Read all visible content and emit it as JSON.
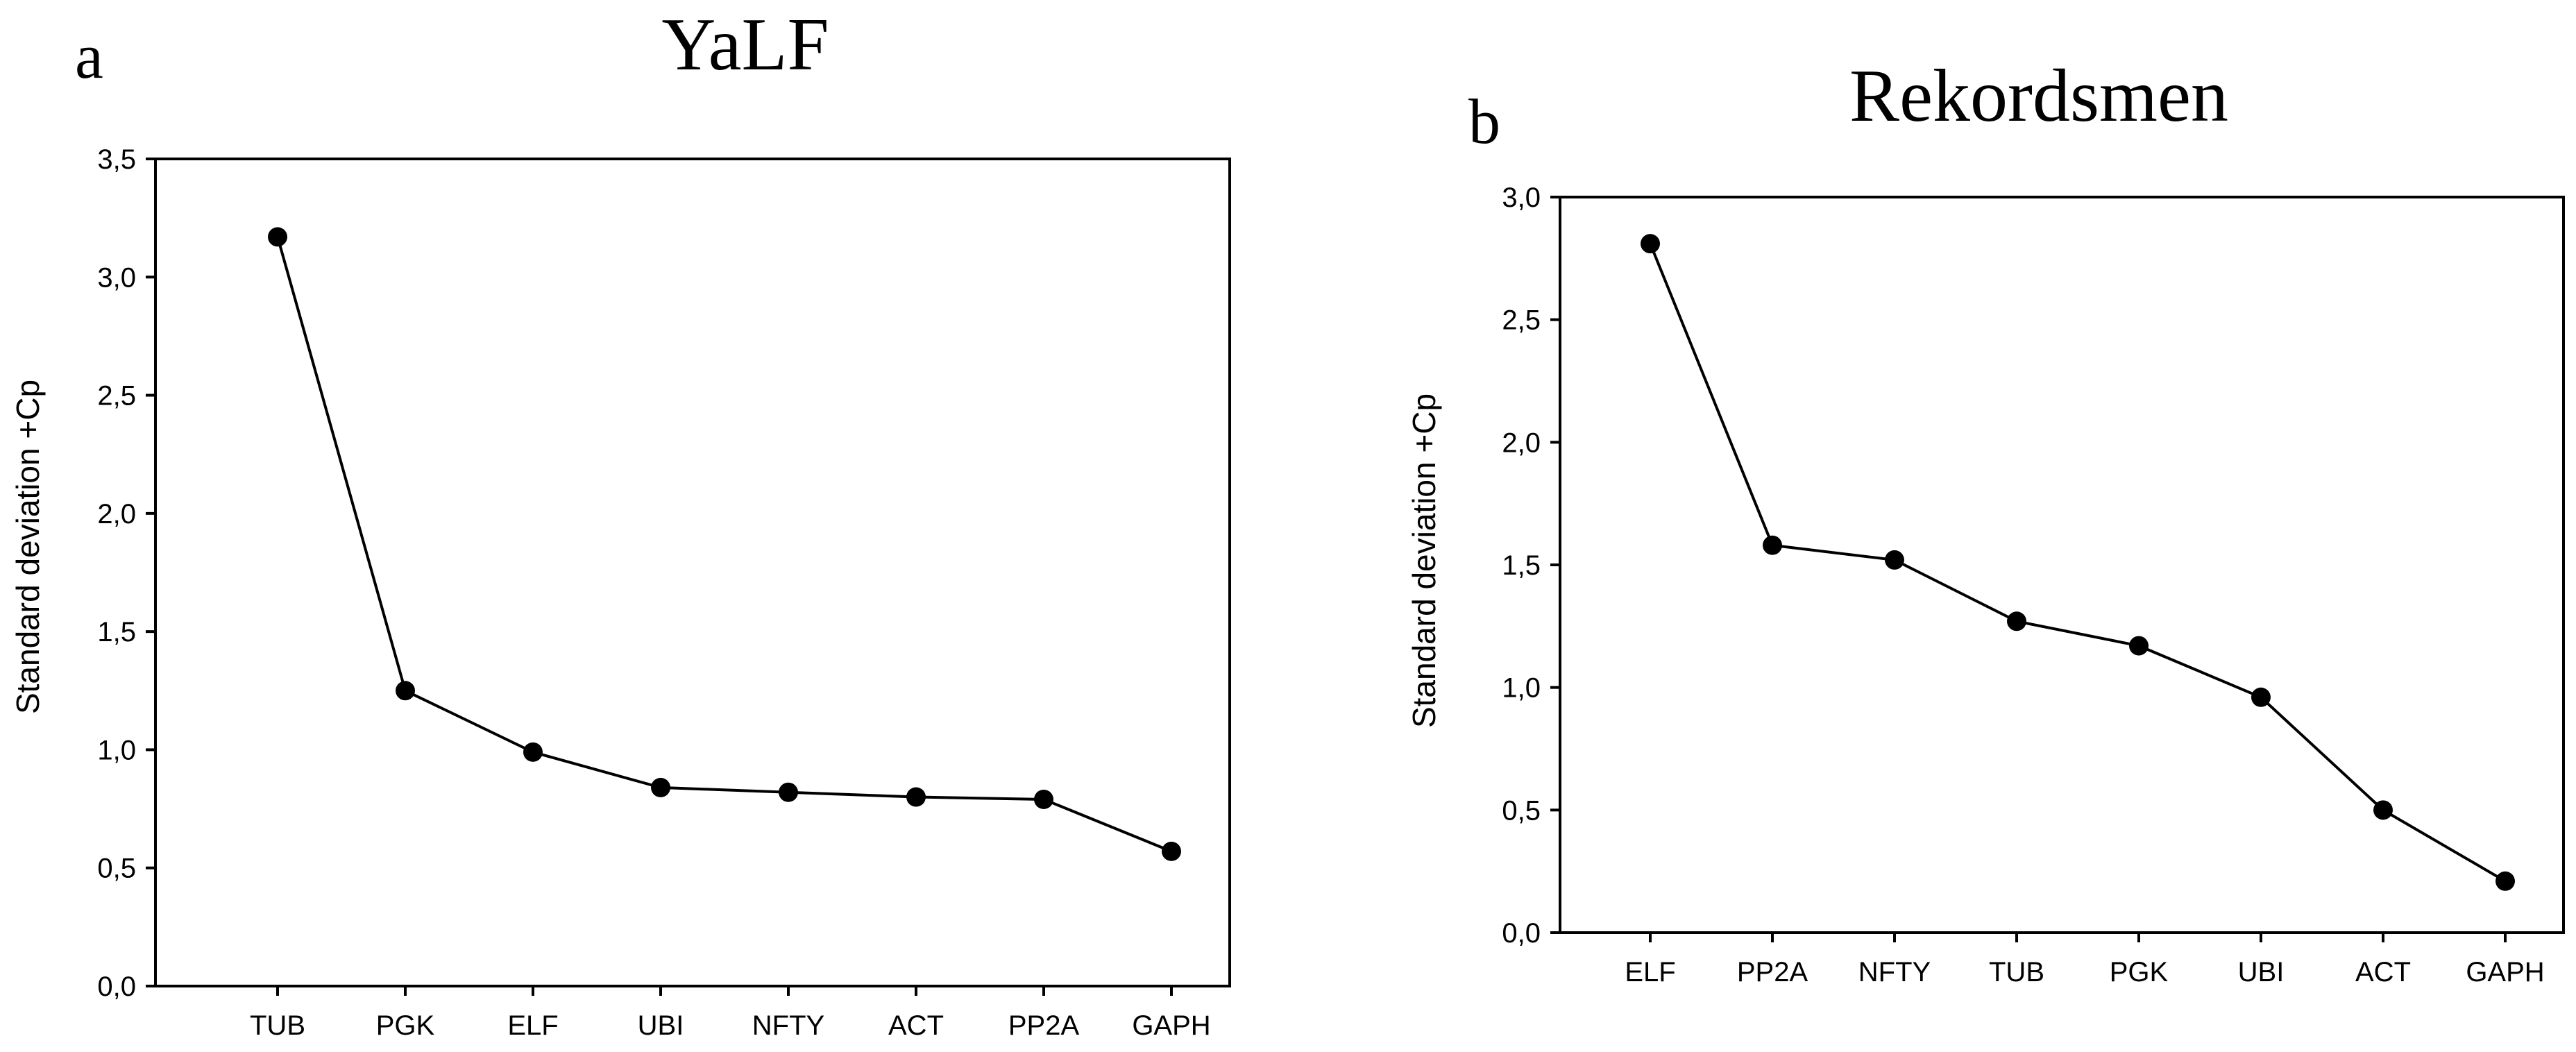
{
  "chart_data": [
    {
      "type": "line",
      "panel_label": "a",
      "title": "YaLF",
      "xlabel": "",
      "ylabel": "Standard deviation +Cp",
      "ylim": [
        0,
        3.5
      ],
      "yticks": [
        "0,0",
        "0,5",
        "1,0",
        "1,5",
        "2,0",
        "2,5",
        "3,0",
        "3,5"
      ],
      "categories": [
        "TUB",
        "PGK",
        "ELF",
        "UBI",
        "NFTY",
        "ACT",
        "PP2A",
        "GAPH"
      ],
      "values": [
        3.17,
        1.25,
        0.99,
        0.84,
        0.82,
        0.8,
        0.79,
        0.57
      ],
      "grid": false
    },
    {
      "type": "line",
      "panel_label": "b",
      "title": "Rekordsmen",
      "xlabel": "",
      "ylabel": "Standard deviation +Cp",
      "ylim": [
        0,
        3.0
      ],
      "yticks": [
        "0,0",
        "0,5",
        "1,0",
        "1,5",
        "2,0",
        "2,5",
        "3,0"
      ],
      "categories": [
        "ELF",
        "PP2A",
        "NFTY",
        "TUB",
        "PGK",
        "UBI",
        "ACT",
        "GAPH"
      ],
      "values": [
        2.81,
        1.58,
        1.52,
        1.27,
        1.17,
        0.96,
        0.5,
        0.21
      ],
      "grid": false
    }
  ]
}
